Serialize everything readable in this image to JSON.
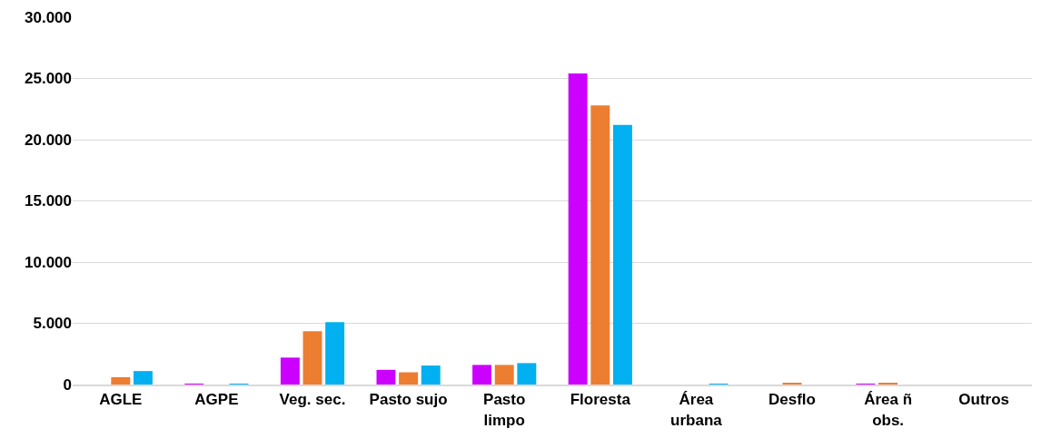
{
  "chart_data": {
    "type": "bar",
    "categories": [
      "AGLE",
      "AGPE",
      "Veg. sec.",
      "Pasto sujo",
      "Pasto limpo",
      "Floresta",
      "Área urbana",
      "Desflo",
      "Área ñ obs.",
      "Outros"
    ],
    "series": [
      {
        "color": "#cc00ff",
        "values": [
          null,
          50,
          2200,
          1200,
          1600,
          25400,
          null,
          null,
          50,
          null
        ]
      },
      {
        "color": "#ed7d31",
        "values": [
          600,
          null,
          4350,
          1000,
          1600,
          22800,
          null,
          120,
          120,
          null
        ]
      },
      {
        "color": "#00b0f0",
        "values": [
          1100,
          50,
          5100,
          1550,
          1750,
          21200,
          50,
          null,
          null,
          null
        ]
      }
    ],
    "ylim": [
      0,
      30000
    ],
    "yticks": [
      {
        "value": 0,
        "label": "0"
      },
      {
        "value": 5000,
        "label": "5.000"
      },
      {
        "value": 10000,
        "label": "10.000"
      },
      {
        "value": 15000,
        "label": "15.000"
      },
      {
        "value": 20000,
        "label": "20.000"
      },
      {
        "value": 25000,
        "label": "25.000"
      },
      {
        "value": 30000,
        "label": "30.000"
      }
    ],
    "grid": "y"
  }
}
